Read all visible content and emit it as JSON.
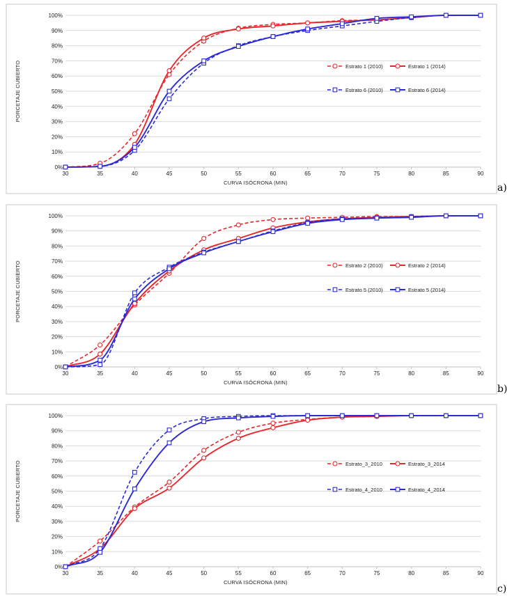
{
  "colors": {
    "red": "#e8262b",
    "blue": "#2a2ad6",
    "grid": "#d9d9d9",
    "axis": "#bfbfbf",
    "border": "#c8c8c8"
  },
  "chart_data": [
    {
      "type": "line",
      "panel_label": "a)",
      "xlabel": "CURVA ISÓCRONA (MIN)",
      "ylabel": "PORCETAJE CUBIERTO",
      "x_ticks": [
        "30",
        "35",
        "40",
        "45",
        "50",
        "55",
        "60",
        "65",
        "70",
        "75",
        "80",
        "85",
        "90"
      ],
      "y_ticks": [
        "0%",
        "10%",
        "20%",
        "30%",
        "40%",
        "50%",
        "60%",
        "70%",
        "80%",
        "90%",
        "100%"
      ],
      "xlim": [
        30,
        90
      ],
      "ylim": [
        0,
        100
      ],
      "grid": true,
      "legend_position": "right",
      "series": [
        {
          "name": "Estrato 1 (2010)",
          "color": "#e8262b",
          "dash": true,
          "marker": "circle",
          "x": [
            30,
            35,
            40,
            45,
            50,
            55,
            60,
            65,
            70,
            75,
            80,
            85,
            90
          ],
          "y": [
            0,
            2.5,
            22,
            61,
            83,
            91.5,
            94,
            95,
            96.5,
            97,
            98.5,
            100,
            100
          ]
        },
        {
          "name": "Estrato 1 (2014)",
          "color": "#e8262b",
          "dash": false,
          "marker": "circle",
          "x": [
            30,
            35,
            40,
            45,
            50,
            55,
            60,
            65,
            70,
            75,
            80,
            85,
            90
          ],
          "y": [
            0,
            0.5,
            15,
            63.5,
            85,
            91,
            93,
            95,
            96,
            97,
            98.5,
            100,
            100
          ]
        },
        {
          "name": "Estrato 6 (2010)",
          "color": "#2a2ad6",
          "dash": true,
          "marker": "square",
          "x": [
            30,
            35,
            40,
            45,
            50,
            55,
            60,
            65,
            70,
            75,
            80,
            85,
            90
          ],
          "y": [
            0,
            0.5,
            11,
            45,
            68.5,
            80,
            86,
            90,
            93,
            96,
            98.5,
            100,
            100
          ]
        },
        {
          "name": "Estrato 6 (2014)",
          "color": "#2a2ad6",
          "dash": false,
          "marker": "square",
          "x": [
            30,
            35,
            40,
            45,
            50,
            55,
            60,
            65,
            70,
            75,
            80,
            85,
            90
          ],
          "y": [
            0,
            0.5,
            13,
            50,
            70,
            79.5,
            86,
            91,
            94.5,
            98,
            99,
            100,
            100
          ]
        }
      ]
    },
    {
      "type": "line",
      "panel_label": "b)",
      "xlabel": "CURVA ISÓCRONA (MIN)",
      "ylabel": "PORCETAJE CUBIERTO",
      "x_ticks": [
        "30",
        "35",
        "40",
        "45",
        "50",
        "55",
        "60",
        "65",
        "70",
        "75",
        "80",
        "85",
        "90"
      ],
      "y_ticks": [
        "0%",
        "10%",
        "20%",
        "30%",
        "40%",
        "50%",
        "60%",
        "70%",
        "80%",
        "90%",
        "100%"
      ],
      "xlim": [
        30,
        90
      ],
      "ylim": [
        0,
        100
      ],
      "grid": true,
      "legend_position": "right",
      "series": [
        {
          "name": "Estrato 2 (2010)",
          "color": "#e8262b",
          "dash": true,
          "marker": "circle",
          "x": [
            30,
            35,
            40,
            45,
            50,
            55,
            60,
            65,
            70,
            75,
            80,
            85,
            90
          ],
          "y": [
            0,
            14.5,
            41,
            62,
            85,
            94,
            97.5,
            98.5,
            99,
            99.5,
            99.5,
            100,
            100
          ]
        },
        {
          "name": "Estrato 2 (2014)",
          "color": "#e8262b",
          "dash": false,
          "marker": "circle",
          "x": [
            30,
            35,
            40,
            45,
            50,
            55,
            60,
            65,
            70,
            75,
            80,
            85,
            90
          ],
          "y": [
            0,
            8.5,
            42,
            63.5,
            77.5,
            85,
            92,
            96,
            98,
            99,
            99.5,
            100,
            100
          ]
        },
        {
          "name": "Estrato 5 (2010)",
          "color": "#2a2ad6",
          "dash": true,
          "marker": "square",
          "x": [
            30,
            35,
            40,
            45,
            50,
            55,
            60,
            65,
            70,
            75,
            80,
            85,
            90
          ],
          "y": [
            0,
            1.5,
            49,
            66,
            76,
            83,
            90,
            95.5,
            98,
            98.5,
            99.5,
            100,
            100
          ]
        },
        {
          "name": "Estrato 5 (2014)",
          "color": "#2a2ad6",
          "dash": false,
          "marker": "square",
          "x": [
            30,
            35,
            40,
            45,
            50,
            55,
            60,
            65,
            70,
            75,
            80,
            85,
            90
          ],
          "y": [
            0,
            4.5,
            45,
            65,
            75.5,
            83,
            89.5,
            95,
            97.5,
            98.5,
            99,
            100,
            100
          ]
        }
      ]
    },
    {
      "type": "line",
      "panel_label": "c)",
      "xlabel": "CURVA ISÓCRONA (MIN)",
      "ylabel": "PORCETAJE CUBIERTO",
      "x_ticks": [
        "30",
        "35",
        "40",
        "45",
        "50",
        "55",
        "60",
        "65",
        "70",
        "75",
        "80",
        "85",
        "90"
      ],
      "y_ticks": [
        "0%",
        "10%",
        "20%",
        "30%",
        "40%",
        "50%",
        "60%",
        "70%",
        "80%",
        "90%",
        "100%"
      ],
      "xlim": [
        30,
        90
      ],
      "ylim": [
        0,
        100
      ],
      "grid": true,
      "legend_position": "right",
      "series": [
        {
          "name": "Estrato_3_2010",
          "color": "#e8262b",
          "dash": true,
          "marker": "circle",
          "x": [
            30,
            35,
            40,
            45,
            50,
            55,
            60,
            65,
            70,
            75,
            80,
            85,
            90
          ],
          "y": [
            0,
            17,
            39.5,
            56,
            77,
            89,
            95,
            97.5,
            99,
            99.5,
            100,
            100,
            100
          ]
        },
        {
          "name": "Estrato_3_2014",
          "color": "#e8262b",
          "dash": false,
          "marker": "circle",
          "x": [
            30,
            35,
            40,
            45,
            50,
            55,
            60,
            65,
            70,
            75,
            80,
            85,
            90
          ],
          "y": [
            0,
            12,
            38.5,
            52,
            72,
            85,
            92,
            97,
            99,
            99.5,
            100,
            100,
            100
          ]
        },
        {
          "name": "Estrato_4_2010",
          "color": "#2a2ad6",
          "dash": true,
          "marker": "square",
          "x": [
            30,
            35,
            40,
            45,
            50,
            55,
            60,
            65,
            70,
            75,
            80,
            85,
            90
          ],
          "y": [
            0,
            12,
            62.5,
            90.5,
            98,
            99.5,
            100,
            100,
            100,
            100,
            100,
            100,
            100
          ]
        },
        {
          "name": "Estrato_4_2014",
          "color": "#2a2ad6",
          "dash": false,
          "marker": "square",
          "x": [
            30,
            35,
            40,
            45,
            50,
            55,
            60,
            65,
            70,
            75,
            80,
            85,
            90
          ],
          "y": [
            0,
            9.5,
            51.5,
            82,
            96,
            98.5,
            99.5,
            100,
            100,
            100,
            100,
            100,
            100
          ]
        }
      ]
    }
  ]
}
